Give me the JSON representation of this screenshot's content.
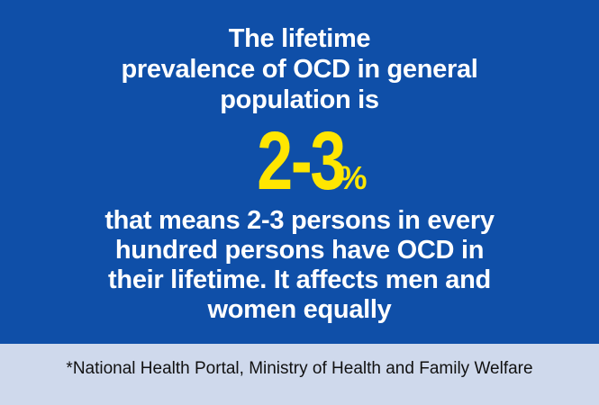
{
  "colors": {
    "panel_background": "#0f4fa8",
    "text": "#ffffff",
    "highlight": "#ffe600",
    "footer_background": "#cfd9ec",
    "footer_text": "#111111"
  },
  "intro_lines": [
    "The lifetime",
    "prevalence of OCD in general",
    "population is"
  ],
  "stat": {
    "number": "2-3",
    "unit": "%"
  },
  "detail_lines": [
    "that means 2-3 persons in every",
    "hundred persons have OCD in",
    "their lifetime. It affects men and",
    "women equally"
  ],
  "footer": {
    "source": "*National Health Portal, Ministry of Health and Family Welfare"
  }
}
